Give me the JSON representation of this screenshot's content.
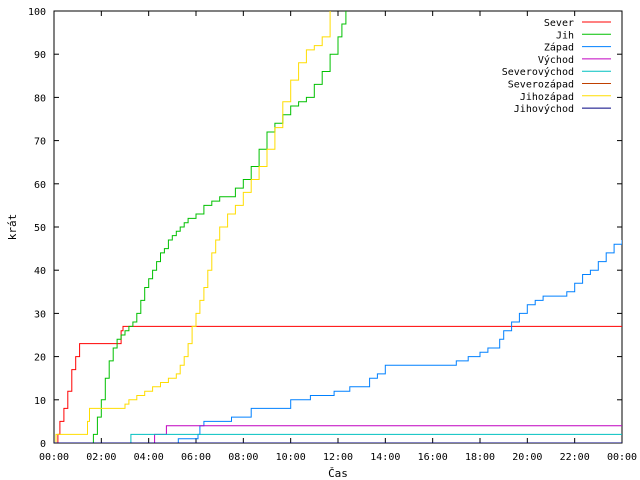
{
  "chart_data": {
    "type": "line",
    "title": "",
    "xlabel": "Čas",
    "ylabel": "krát",
    "xlim": [
      "00:00",
      "24:00"
    ],
    "ylim": [
      0,
      100
    ],
    "x_ticks": [
      "00:00",
      "02:00",
      "04:00",
      "06:00",
      "08:00",
      "10:00",
      "12:00",
      "14:00",
      "16:00",
      "18:00",
      "20:00",
      "22:00",
      "00:00"
    ],
    "y_ticks": [
      0,
      10,
      20,
      30,
      40,
      50,
      60,
      70,
      80,
      90,
      100
    ],
    "grid": false,
    "legend_position": "top-right",
    "series": [
      {
        "name": "Sever",
        "color": "#ff0000",
        "points": [
          [
            "00:00",
            0
          ],
          [
            "00:10",
            2
          ],
          [
            "00:15",
            5
          ],
          [
            "00:25",
            8
          ],
          [
            "00:35",
            12
          ],
          [
            "00:45",
            17
          ],
          [
            "00:55",
            20
          ],
          [
            "01:05",
            23
          ],
          [
            "02:45",
            23
          ],
          [
            "02:50",
            26
          ],
          [
            "02:55",
            27
          ],
          [
            "24:00",
            27
          ]
        ]
      },
      {
        "name": "Jih",
        "color": "#00c000",
        "points": [
          [
            "00:00",
            0
          ],
          [
            "01:30",
            0
          ],
          [
            "01:40",
            2
          ],
          [
            "01:50",
            6
          ],
          [
            "02:00",
            10
          ],
          [
            "02:10",
            15
          ],
          [
            "02:20",
            19
          ],
          [
            "02:30",
            22
          ],
          [
            "02:40",
            24
          ],
          [
            "02:50",
            25
          ],
          [
            "03:00",
            26
          ],
          [
            "03:10",
            27
          ],
          [
            "03:20",
            28
          ],
          [
            "03:30",
            30
          ],
          [
            "03:40",
            33
          ],
          [
            "03:50",
            36
          ],
          [
            "04:00",
            38
          ],
          [
            "04:10",
            40
          ],
          [
            "04:20",
            42
          ],
          [
            "04:30",
            44
          ],
          [
            "04:40",
            45
          ],
          [
            "04:50",
            47
          ],
          [
            "05:00",
            48
          ],
          [
            "05:10",
            49
          ],
          [
            "05:20",
            50
          ],
          [
            "05:30",
            51
          ],
          [
            "05:40",
            52
          ],
          [
            "05:50",
            52
          ],
          [
            "06:00",
            53
          ],
          [
            "06:20",
            55
          ],
          [
            "06:40",
            56
          ],
          [
            "07:00",
            57
          ],
          [
            "07:20",
            57
          ],
          [
            "07:40",
            59
          ],
          [
            "08:00",
            61
          ],
          [
            "08:20",
            64
          ],
          [
            "08:40",
            68
          ],
          [
            "09:00",
            72
          ],
          [
            "09:20",
            74
          ],
          [
            "09:40",
            76
          ],
          [
            "10:00",
            78
          ],
          [
            "10:20",
            79
          ],
          [
            "10:40",
            80
          ],
          [
            "11:00",
            83
          ],
          [
            "11:20",
            86
          ],
          [
            "11:40",
            90
          ],
          [
            "12:00",
            94
          ],
          [
            "12:10",
            97
          ],
          [
            "12:20",
            100
          ]
        ]
      },
      {
        "name": "Západ",
        "color": "#0080ff",
        "points": [
          [
            "00:00",
            0
          ],
          [
            "05:10",
            0
          ],
          [
            "05:15",
            1
          ],
          [
            "06:00",
            1
          ],
          [
            "06:05",
            2
          ],
          [
            "06:10",
            4
          ],
          [
            "06:20",
            5
          ],
          [
            "07:20",
            5
          ],
          [
            "07:30",
            6
          ],
          [
            "08:10",
            6
          ],
          [
            "08:20",
            8
          ],
          [
            "09:50",
            8
          ],
          [
            "10:00",
            10
          ],
          [
            "10:50",
            11
          ],
          [
            "11:50",
            12
          ],
          [
            "12:30",
            13
          ],
          [
            "13:20",
            15
          ],
          [
            "13:40",
            16
          ],
          [
            "14:00",
            18
          ],
          [
            "16:50",
            18
          ],
          [
            "17:00",
            19
          ],
          [
            "17:30",
            20
          ],
          [
            "18:00",
            21
          ],
          [
            "18:20",
            22
          ],
          [
            "18:50",
            24
          ],
          [
            "19:00",
            26
          ],
          [
            "19:20",
            28
          ],
          [
            "19:40",
            30
          ],
          [
            "20:00",
            32
          ],
          [
            "20:20",
            33
          ],
          [
            "20:40",
            34
          ],
          [
            "21:40",
            35
          ],
          [
            "22:00",
            37
          ],
          [
            "22:20",
            39
          ],
          [
            "22:40",
            40
          ],
          [
            "23:00",
            42
          ],
          [
            "23:20",
            44
          ],
          [
            "23:40",
            46
          ],
          [
            "24:00",
            47
          ]
        ]
      },
      {
        "name": "Východ",
        "color": "#c000c0",
        "points": [
          [
            "00:00",
            0
          ],
          [
            "04:10",
            0
          ],
          [
            "04:15",
            2
          ],
          [
            "04:40",
            2
          ],
          [
            "04:45",
            4
          ],
          [
            "24:00",
            4
          ]
        ]
      },
      {
        "name": "Severovýchod",
        "color": "#00c0c0",
        "points": [
          [
            "00:00",
            0
          ],
          [
            "03:10",
            0
          ],
          [
            "03:15",
            2
          ],
          [
            "24:00",
            2
          ]
        ]
      },
      {
        "name": "Severozápad",
        "color": "#c04000",
        "points": [
          [
            "00:00",
            0
          ],
          [
            "24:00",
            0
          ]
        ]
      },
      {
        "name": "Jihozápad",
        "color": "#ffdd00",
        "points": [
          [
            "00:00",
            0
          ],
          [
            "00:05",
            2
          ],
          [
            "01:20",
            2
          ],
          [
            "01:25",
            5
          ],
          [
            "01:30",
            8
          ],
          [
            "02:50",
            8
          ],
          [
            "03:00",
            9
          ],
          [
            "03:10",
            10
          ],
          [
            "03:30",
            11
          ],
          [
            "03:50",
            12
          ],
          [
            "04:10",
            13
          ],
          [
            "04:30",
            14
          ],
          [
            "04:50",
            15
          ],
          [
            "05:10",
            16
          ],
          [
            "05:20",
            18
          ],
          [
            "05:30",
            20
          ],
          [
            "05:40",
            23
          ],
          [
            "05:50",
            27
          ],
          [
            "06:00",
            30
          ],
          [
            "06:10",
            33
          ],
          [
            "06:20",
            36
          ],
          [
            "06:30",
            40
          ],
          [
            "06:40",
            44
          ],
          [
            "06:50",
            47
          ],
          [
            "07:00",
            50
          ],
          [
            "07:20",
            53
          ],
          [
            "07:40",
            55
          ],
          [
            "08:00",
            58
          ],
          [
            "08:20",
            61
          ],
          [
            "08:40",
            64
          ],
          [
            "09:00",
            68
          ],
          [
            "09:20",
            73
          ],
          [
            "09:40",
            79
          ],
          [
            "10:00",
            84
          ],
          [
            "10:20",
            88
          ],
          [
            "10:40",
            91
          ],
          [
            "11:00",
            92
          ],
          [
            "11:20",
            94
          ],
          [
            "11:40",
            100
          ]
        ]
      },
      {
        "name": "Jihovýchod",
        "color": "#000080",
        "points": [
          [
            "00:00",
            0
          ],
          [
            "24:00",
            0
          ]
        ]
      }
    ]
  }
}
